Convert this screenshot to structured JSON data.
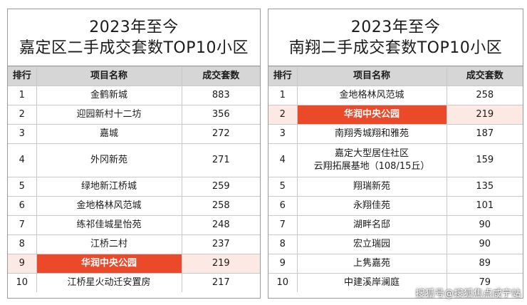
{
  "left": {
    "title_line1": "2023年至今",
    "title_line2": "嘉定区二手成交套数TOP10小区",
    "headers": [
      "排行",
      "项目名称",
      "成交套数"
    ],
    "rows": [
      {
        "rank": "1",
        "name": "金鹤新城",
        "count": "883"
      },
      {
        "rank": "2",
        "name": "迎园新村十二坊",
        "count": "356"
      },
      {
        "rank": "3",
        "name": "嘉城",
        "count": "272"
      },
      {
        "rank": "4",
        "name": "外冈新苑",
        "count": "271"
      },
      {
        "rank": "5",
        "name": "绿地新江桥城",
        "count": "259"
      },
      {
        "rank": "6",
        "name": "金地格林风范城",
        "count": "258"
      },
      {
        "rank": "7",
        "name": "练祁佳城星怡苑",
        "count": "248"
      },
      {
        "rank": "8",
        "name": "江桥二村",
        "count": "237"
      },
      {
        "rank": "9",
        "name": "华润中央公园",
        "count": "219"
      },
      {
        "rank": "10",
        "name": "江桥星火动迁安置房",
        "count": "217"
      }
    ]
  },
  "right": {
    "title_line1": "2023年至今",
    "title_line2": "南翔二手成交套数TOP10小区",
    "headers": [
      "排行",
      "项目名称",
      "成交套数"
    ],
    "rows": [
      {
        "rank": "1",
        "name": "金地格林风范城",
        "count": "258"
      },
      {
        "rank": "2",
        "name": "华润中央公园",
        "count": "219"
      },
      {
        "rank": "3",
        "name": "南翔秀城翔和雅苑",
        "count": "187"
      },
      {
        "rank": "4",
        "name": "嘉定大型居住社区",
        "name2": "云翔拓展基地（108/15丘）",
        "count": "159"
      },
      {
        "rank": "5",
        "name": "翔瑞新苑",
        "count": "135"
      },
      {
        "rank": "6",
        "name": "永翔佳苑",
        "count": "101"
      },
      {
        "rank": "7",
        "name": "湖畔名邸",
        "count": "90"
      },
      {
        "rank": "8",
        "name": "宏立瑞园",
        "count": "90"
      },
      {
        "rank": "9",
        "name": "上隽嘉苑",
        "count": "89"
      },
      {
        "rank": "10",
        "name": "中建溪岸澜庭",
        "count": "79"
      }
    ]
  },
  "watermark": "搜狐号@搜狐焦点咸宁站",
  "colors": {
    "highlight": "#ea4a2a",
    "header_bg": "#d6d6d6"
  }
}
